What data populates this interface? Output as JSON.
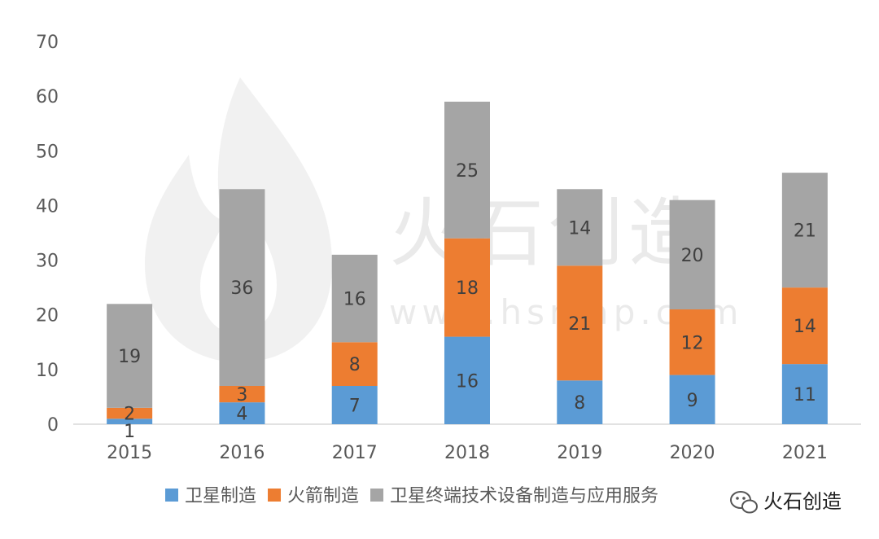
{
  "chart_data": {
    "type": "bar",
    "stacked": true,
    "categories": [
      "2015",
      "2016",
      "2017",
      "2018",
      "2019",
      "2020",
      "2021"
    ],
    "series": [
      {
        "name": "卫星制造",
        "color": "#5b9bd5",
        "values": [
          1,
          4,
          7,
          16,
          8,
          9,
          11
        ]
      },
      {
        "name": "火箭制造",
        "color": "#ed7d31",
        "values": [
          2,
          3,
          8,
          18,
          21,
          12,
          14
        ]
      },
      {
        "name": "卫星终端技术设备制造与应用服务",
        "color": "#a5a5a5",
        "values": [
          19,
          36,
          16,
          25,
          14,
          20,
          21
        ]
      }
    ],
    "ylim": [
      0,
      70
    ],
    "yticks": [
      "0",
      "10",
      "20",
      "30",
      "40",
      "50",
      "60",
      "70"
    ],
    "grid": false,
    "legend_position": "bottom"
  },
  "watermark": {
    "brand": "火石创造",
    "url": "www.hsmap.com",
    "badge": "火石创造",
    "badge_icon": "wechat-icon"
  }
}
